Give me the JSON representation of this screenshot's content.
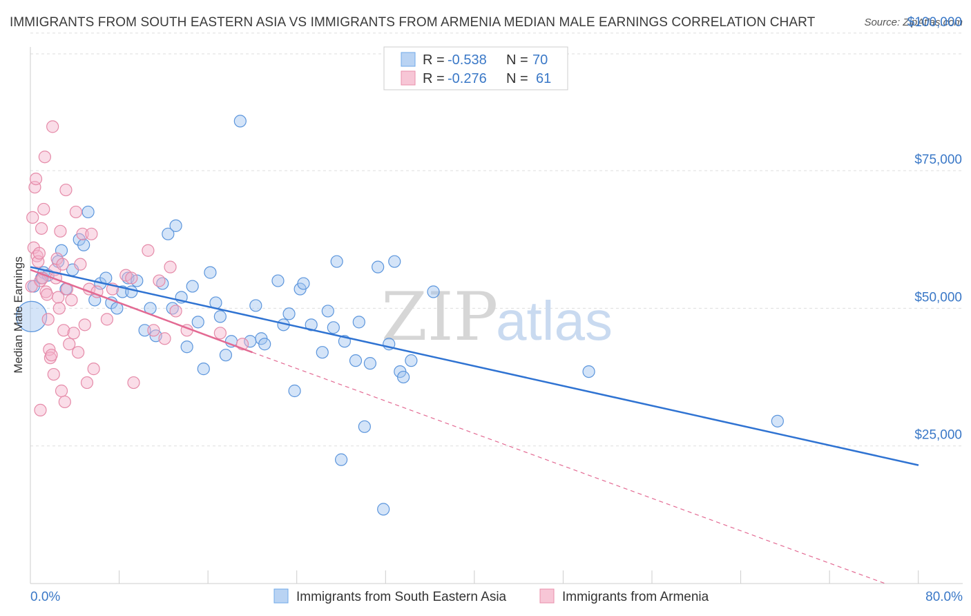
{
  "title": "IMMIGRANTS FROM SOUTH EASTERN ASIA VS IMMIGRANTS FROM ARMENIA MEDIAN MALE EARNINGS CORRELATION CHART",
  "source": "Source: ZipAtlas.com",
  "watermark": {
    "zip": "ZIP",
    "atlas": "atlas"
  },
  "legend": {
    "r_label": "R =",
    "n_label": "N =",
    "rows": [
      {
        "series": "Immigrants from South Eastern Asia",
        "r": "-0.538",
        "n": "70",
        "color": "#6fa8e8",
        "fill": "#b9d3f3"
      },
      {
        "series": "Immigrants from Armenia",
        "r": "-0.276",
        "n": "61",
        "color": "#e88fab",
        "fill": "#f7c6d6"
      }
    ]
  },
  "chart_data": {
    "type": "scatter",
    "xlabel": "",
    "ylabel": "Median Male Earnings",
    "xlim": [
      0,
      80
    ],
    "ylim": [
      0,
      105000
    ],
    "x_tick_labels": [
      "0.0%",
      "80.0%"
    ],
    "y_tick_labels": [
      "$25,000",
      "$50,000",
      "$75,000",
      "$100,000"
    ],
    "y_ticks": [
      25000,
      50000,
      75000,
      100000
    ],
    "grid": true,
    "series": [
      {
        "name": "Immigrants from South Eastern Asia",
        "color": "#3a78d4",
        "points": [
          [
            0.1,
            48500
          ],
          [
            0.3,
            54000
          ],
          [
            1.0,
            55500
          ],
          [
            1.2,
            56500
          ],
          [
            1.6,
            56000
          ],
          [
            2.5,
            58500
          ],
          [
            2.8,
            60500
          ],
          [
            3.2,
            53500
          ],
          [
            3.8,
            57000
          ],
          [
            4.4,
            62500
          ],
          [
            4.8,
            61500
          ],
          [
            5.2,
            67500
          ],
          [
            5.8,
            51500
          ],
          [
            6.3,
            54500
          ],
          [
            6.8,
            55500
          ],
          [
            7.3,
            51000
          ],
          [
            7.8,
            50000
          ],
          [
            8.3,
            53000
          ],
          [
            8.8,
            55500
          ],
          [
            9.1,
            53000
          ],
          [
            9.6,
            55000
          ],
          [
            10.3,
            46000
          ],
          [
            10.8,
            50000
          ],
          [
            11.3,
            45000
          ],
          [
            11.9,
            54500
          ],
          [
            12.4,
            63500
          ],
          [
            12.8,
            50000
          ],
          [
            13.1,
            65000
          ],
          [
            13.6,
            52000
          ],
          [
            14.1,
            43000
          ],
          [
            14.6,
            54000
          ],
          [
            15.1,
            47500
          ],
          [
            15.6,
            39000
          ],
          [
            16.2,
            56500
          ],
          [
            16.7,
            51000
          ],
          [
            17.1,
            48500
          ],
          [
            17.6,
            41500
          ],
          [
            18.1,
            44000
          ],
          [
            18.9,
            84000
          ],
          [
            19.8,
            44000
          ],
          [
            20.3,
            50500
          ],
          [
            20.8,
            44500
          ],
          [
            21.1,
            43500
          ],
          [
            22.3,
            55000
          ],
          [
            22.8,
            47000
          ],
          [
            23.3,
            49000
          ],
          [
            23.8,
            35000
          ],
          [
            24.3,
            53500
          ],
          [
            24.6,
            54500
          ],
          [
            25.3,
            47000
          ],
          [
            26.3,
            42000
          ],
          [
            26.8,
            49500
          ],
          [
            27.3,
            46500
          ],
          [
            27.6,
            58500
          ],
          [
            28.3,
            44000
          ],
          [
            29.3,
            40500
          ],
          [
            29.6,
            47500
          ],
          [
            30.1,
            28500
          ],
          [
            30.6,
            40000
          ],
          [
            31.3,
            57500
          ],
          [
            31.8,
            13500
          ],
          [
            32.3,
            43500
          ],
          [
            32.8,
            58500
          ],
          [
            33.3,
            38500
          ],
          [
            33.6,
            37500
          ],
          [
            34.3,
            40500
          ],
          [
            36.3,
            53000
          ],
          [
            28.0,
            22500
          ],
          [
            50.3,
            38500
          ],
          [
            67.3,
            29500
          ]
        ]
      },
      {
        "name": "Immigrants from Armenia",
        "color": "#e36a93",
        "points": [
          [
            0.1,
            54000
          ],
          [
            0.2,
            66500
          ],
          [
            0.3,
            61000
          ],
          [
            0.4,
            72000
          ],
          [
            0.5,
            73500
          ],
          [
            0.6,
            59500
          ],
          [
            0.7,
            58500
          ],
          [
            0.8,
            60000
          ],
          [
            0.9,
            55000
          ],
          [
            1.0,
            64500
          ],
          [
            1.1,
            55500
          ],
          [
            1.2,
            68000
          ],
          [
            1.3,
            77500
          ],
          [
            1.4,
            53000
          ],
          [
            1.5,
            52500
          ],
          [
            1.6,
            48000
          ],
          [
            1.7,
            42500
          ],
          [
            1.8,
            41000
          ],
          [
            1.9,
            41500
          ],
          [
            2.0,
            83000
          ],
          [
            2.1,
            38000
          ],
          [
            2.2,
            57000
          ],
          [
            2.3,
            55500
          ],
          [
            2.4,
            59000
          ],
          [
            2.5,
            52000
          ],
          [
            2.6,
            50000
          ],
          [
            2.7,
            64000
          ],
          [
            2.8,
            35000
          ],
          [
            2.9,
            58000
          ],
          [
            3.0,
            46000
          ],
          [
            3.1,
            33000
          ],
          [
            3.2,
            71500
          ],
          [
            3.3,
            53500
          ],
          [
            3.5,
            43500
          ],
          [
            3.7,
            51500
          ],
          [
            3.9,
            45500
          ],
          [
            4.1,
            67500
          ],
          [
            4.3,
            42000
          ],
          [
            4.5,
            58000
          ],
          [
            4.7,
            63500
          ],
          [
            4.9,
            47000
          ],
          [
            5.1,
            36500
          ],
          [
            5.3,
            53500
          ],
          [
            5.5,
            63500
          ],
          [
            5.7,
            39000
          ],
          [
            6.0,
            53000
          ],
          [
            6.9,
            48000
          ],
          [
            7.4,
            53500
          ],
          [
            8.6,
            56000
          ],
          [
            9.1,
            55500
          ],
          [
            9.3,
            36500
          ],
          [
            10.6,
            60500
          ],
          [
            11.1,
            46000
          ],
          [
            11.6,
            55000
          ],
          [
            12.1,
            44500
          ],
          [
            12.6,
            57500
          ],
          [
            13.1,
            49500
          ],
          [
            14.1,
            46000
          ],
          [
            17.1,
            45500
          ],
          [
            19.1,
            43500
          ],
          [
            0.9,
            31500
          ]
        ]
      }
    ],
    "trend_lines": [
      {
        "series": "Immigrants from South Eastern Asia",
        "x": [
          0,
          80
        ],
        "y": [
          57500,
          21500
        ],
        "style": "solid"
      },
      {
        "series": "Immigrants from Armenia",
        "x": [
          0,
          20
        ],
        "y": [
          57000,
          42000
        ],
        "style": "solid"
      },
      {
        "series": "Immigrants from Armenia",
        "x": [
          20,
          77
        ],
        "y": [
          42000,
          0
        ],
        "style": "dashed"
      }
    ]
  }
}
